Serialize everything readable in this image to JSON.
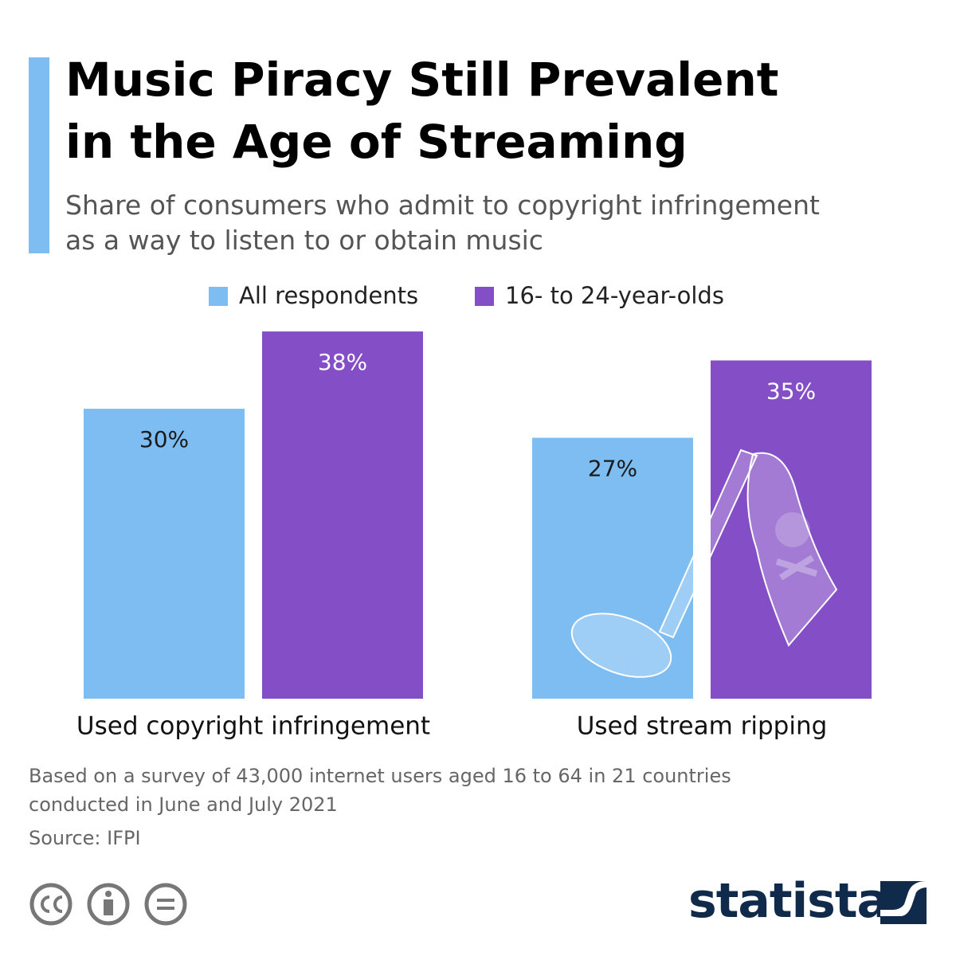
{
  "chart_data": {
    "type": "bar",
    "title": [
      "Music Piracy Still Prevalent",
      "in the Age of Streaming"
    ],
    "subtitle": [
      "Share of consumers who admit to copyright infringement",
      "as a way to listen to or obtain music"
    ],
    "categories": [
      "Used copyright infringement",
      "Used stream ripping"
    ],
    "series": [
      {
        "name": "All respondents",
        "color": "#7ebdf2",
        "values": [
          30,
          27
        ],
        "value_labels": [
          "30%",
          "27%"
        ],
        "label_color": "#1a1a1a"
      },
      {
        "name": "16- to 24-year-olds",
        "color": "#844fc6",
        "values": [
          38,
          35
        ],
        "value_labels": [
          "38%",
          "35%"
        ],
        "label_color": "#ffffff"
      }
    ],
    "note": [
      "Based on a survey of 43,000 internet users aged 16 to 64 in 21 countries",
      "conducted in June and July 2021"
    ],
    "source": "Source: IFPI",
    "brand": "statista"
  }
}
